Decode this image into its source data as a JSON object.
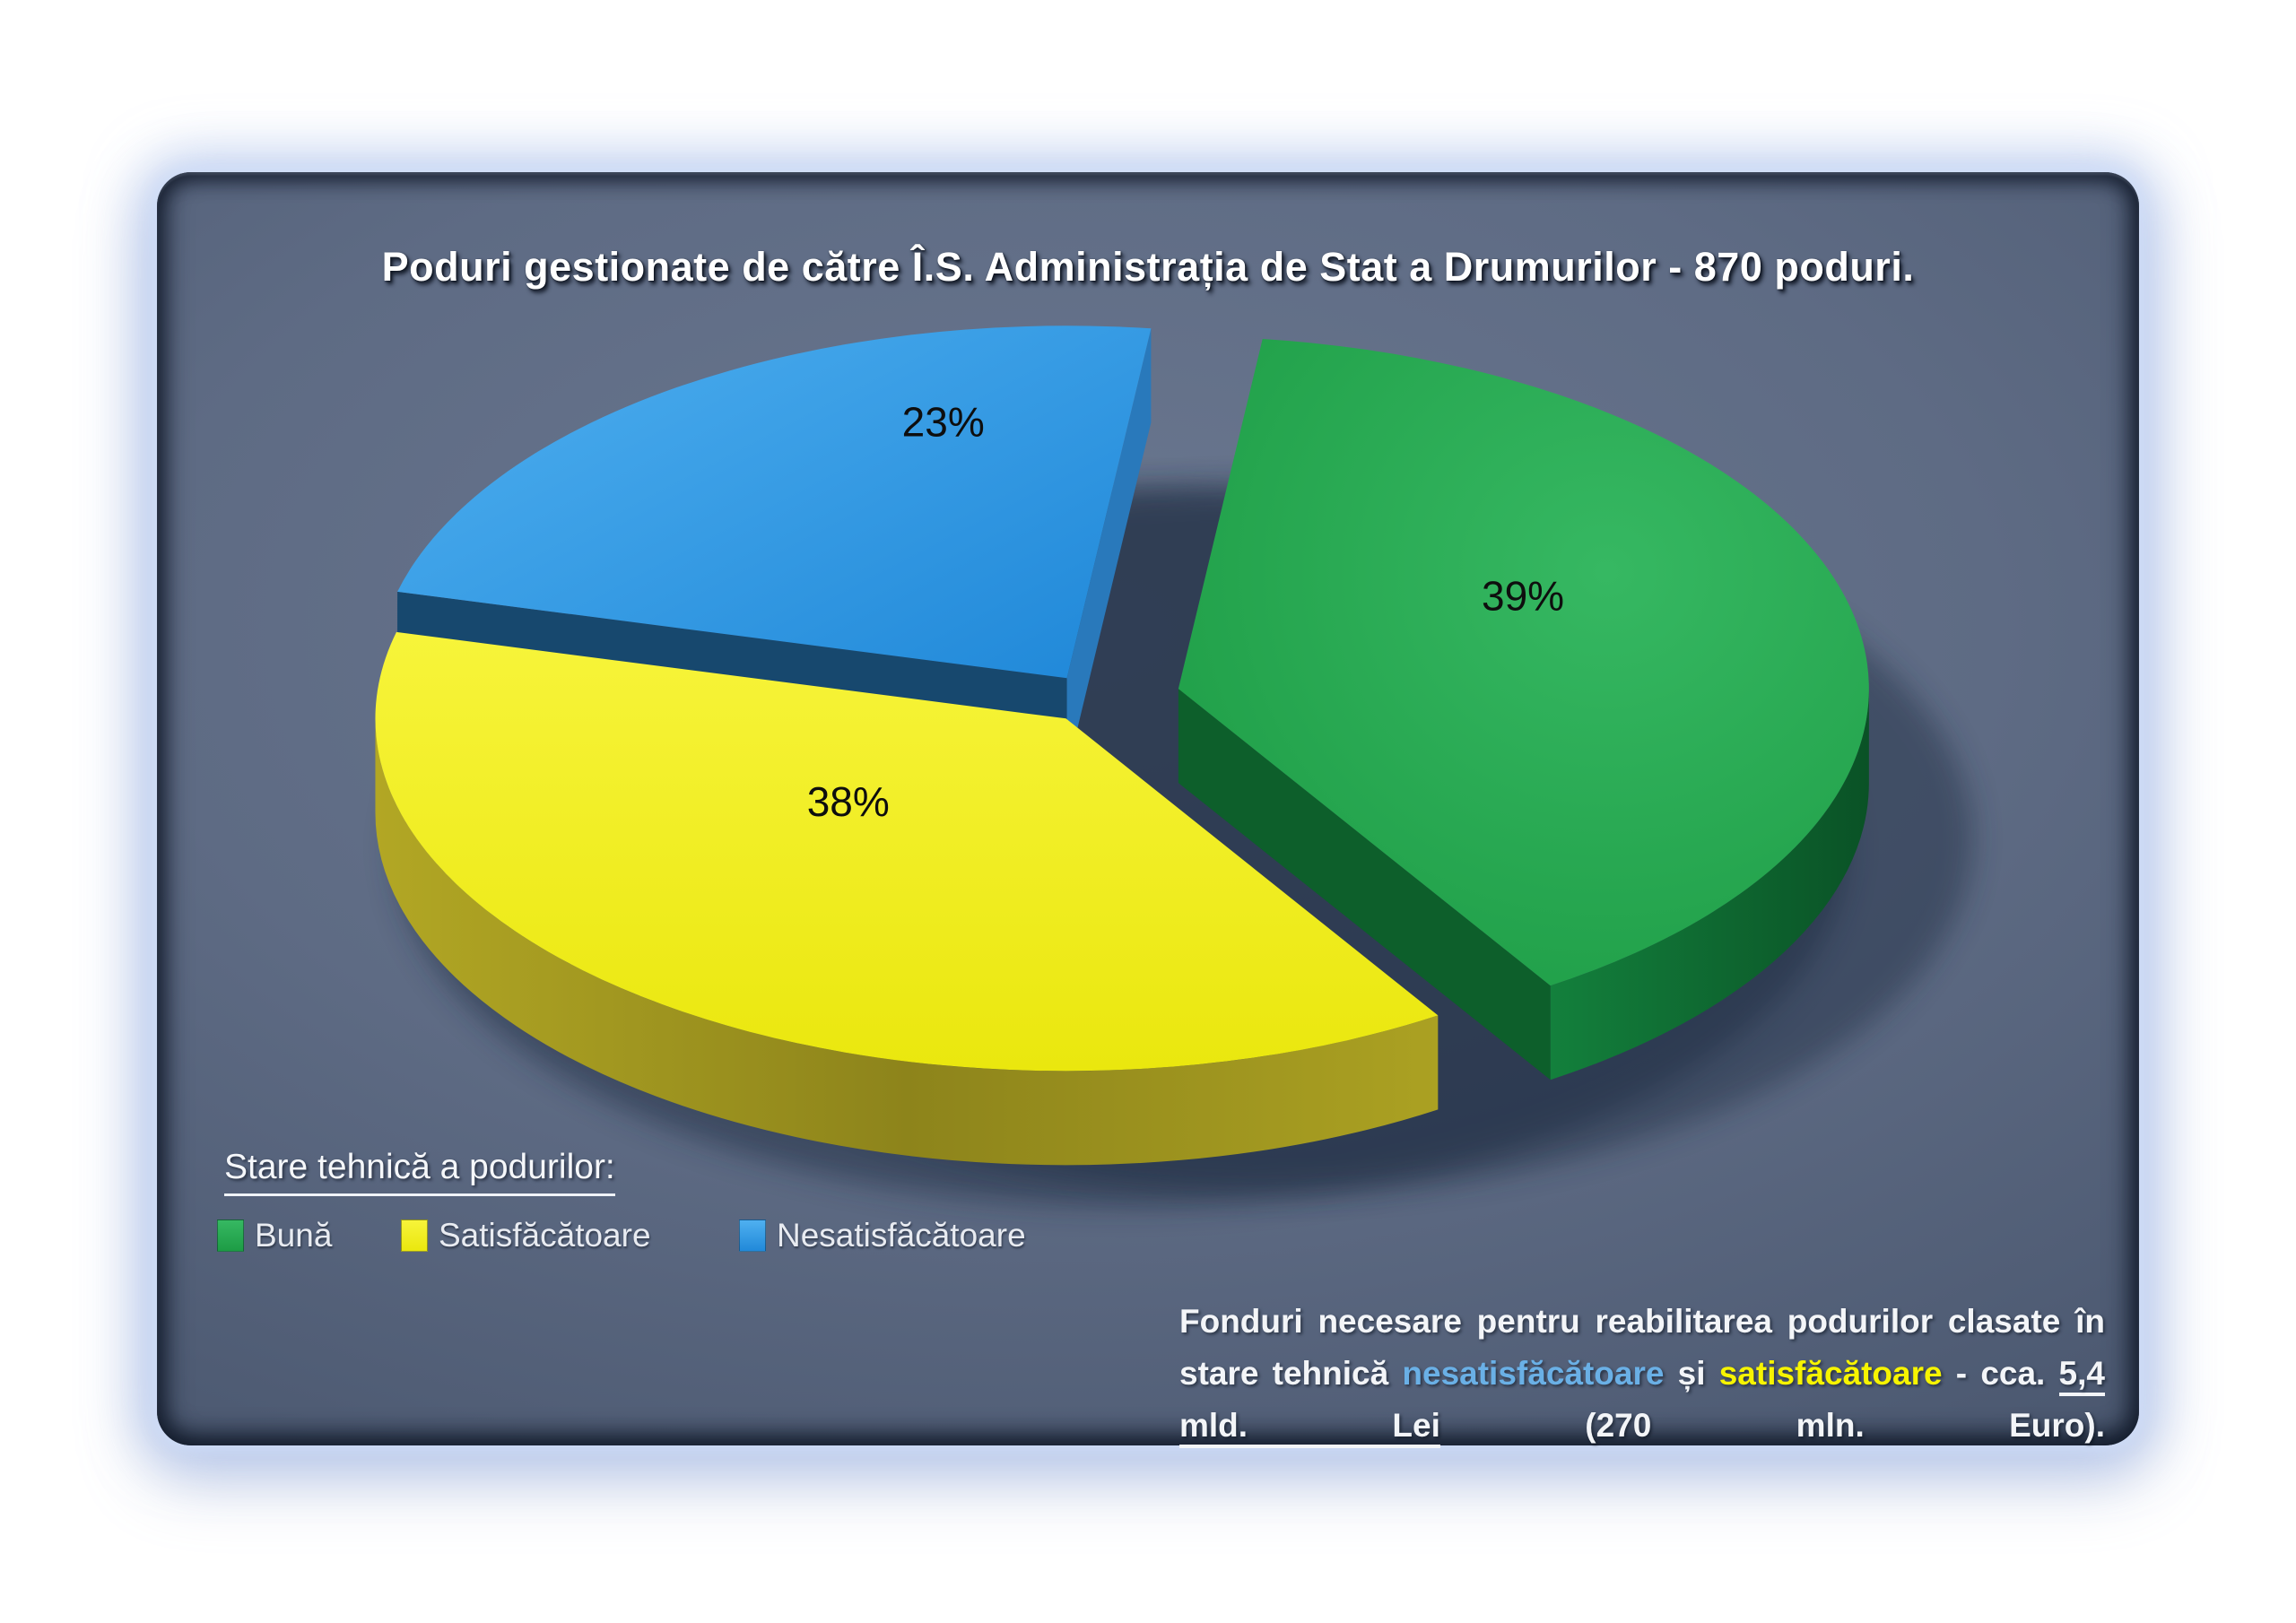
{
  "chart_data": {
    "type": "pie",
    "title": "Poduri gestionate de către Î.S. Administrația de Stat a Drumurilor - 870 poduri.",
    "unit": "%",
    "style": "3d-exploded",
    "legend_title": "Stare tehnică a podurilor:",
    "legend_position": "bottom-left",
    "background_panel_color": "#4d5a72",
    "slices": [
      {
        "label": "Bună",
        "value": 39,
        "pct_label": "39%",
        "top_light": "#36b862",
        "top_dark": "#1d9c45",
        "top_grad": "radial",
        "side_stops": [
          [
            0,
            "#13803c"
          ],
          [
            1,
            "#0a5226"
          ]
        ],
        "face_start": "#0d6130",
        "face_end": "#0d5f2b"
      },
      {
        "label": "Satisfăcătoare",
        "value": 38,
        "pct_label": "38%",
        "top_light": "#f7f43a",
        "top_dark": "#eae70e",
        "top_grad": "vertical",
        "side_stops": [
          [
            0,
            "#b2a724"
          ],
          [
            0.5,
            "#8d841b"
          ],
          [
            1,
            "#aba122"
          ]
        ],
        "face_start": "#9c931f",
        "face_end": "#9c931f"
      },
      {
        "label": "Nesatisfăcătoare",
        "value": 23,
        "pct_label": "23%",
        "top_light": "#4fb0f0",
        "top_dark": "#2189d9",
        "top_grad": "diagonal",
        "side_stops": [
          [
            0,
            "#17486e"
          ],
          [
            1,
            "#1a4f78"
          ]
        ],
        "face_start": "#17486e",
        "face_end": "#2979bb"
      }
    ],
    "label_color": "#0e0e0e",
    "shadow_color": "#1f2940"
  },
  "note": {
    "parts": [
      {
        "text": "Fonduri necesare pentru reabilitarea podurilor clasate în stare tehnică ",
        "style": "plain"
      },
      {
        "text": "nesatisfăcătoare",
        "style": "blue"
      },
      {
        "text": " și ",
        "style": "plain"
      },
      {
        "text": "satisfăcătoare",
        "style": "yellow"
      },
      {
        "text": " - cca. ",
        "style": "plain"
      },
      {
        "text": "5,4 mld. Lei",
        "style": "underline"
      },
      {
        "text": " (270 mln. Euro).",
        "style": "plain"
      }
    ]
  }
}
